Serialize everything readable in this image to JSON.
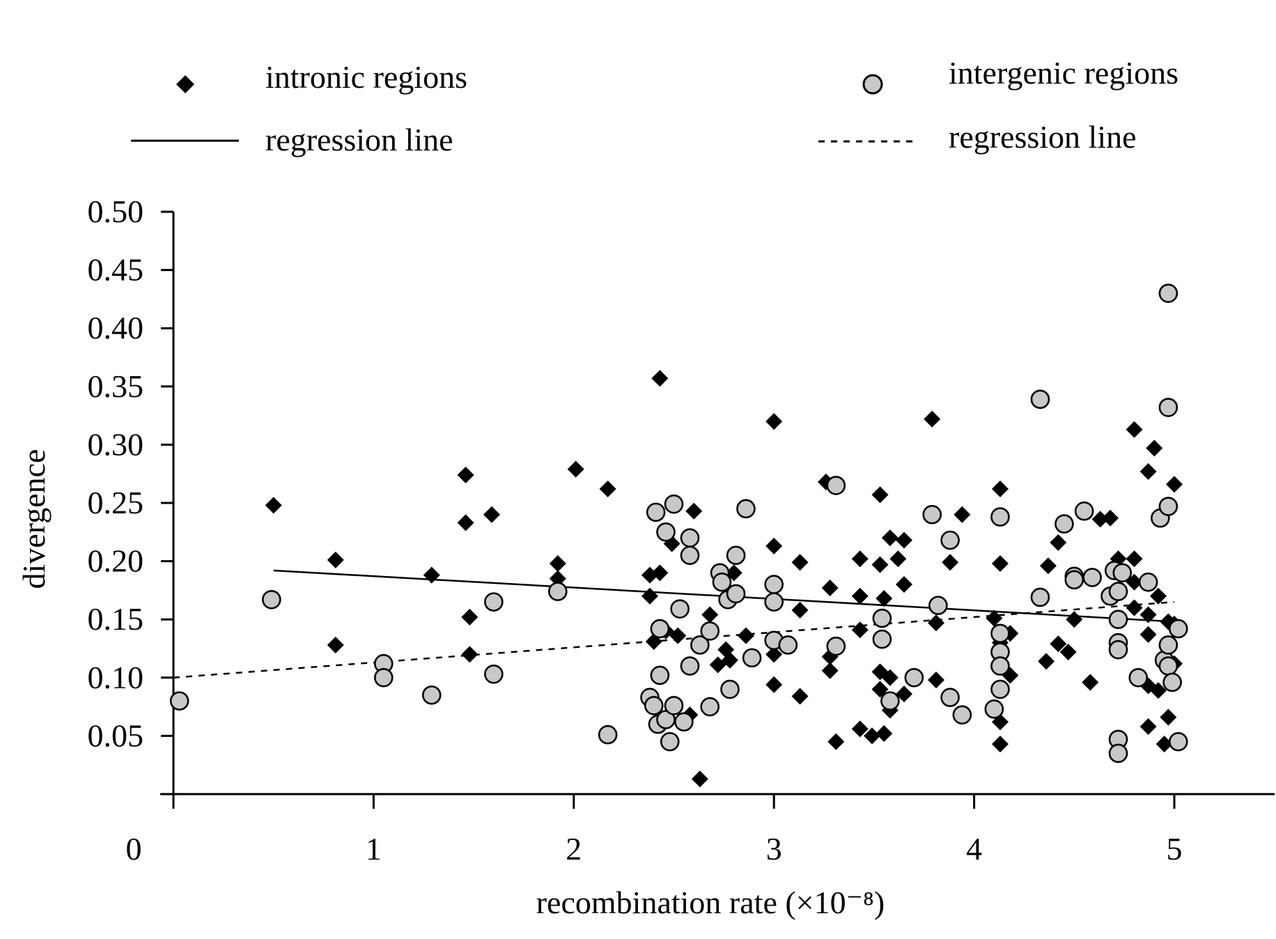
{
  "chart_data": {
    "type": "scatter",
    "xlabel": "recombination rate (×10⁻⁸)",
    "ylabel": "divergence",
    "xlim": [
      0,
      5.5
    ],
    "ylim": [
      0,
      0.5
    ],
    "x_ticks": [
      "0",
      "1",
      "2",
      "3",
      "4",
      "5"
    ],
    "x_tick_values": [
      0,
      1,
      2,
      3,
      4,
      5
    ],
    "y_ticks": [
      "0.05",
      "0.10",
      "0.15",
      "0.20",
      "0.25",
      "0.30",
      "0.35",
      "0.40",
      "0.45",
      "0.50"
    ],
    "y_tick_values": [
      0.05,
      0.1,
      0.15,
      0.2,
      0.25,
      0.3,
      0.35,
      0.4,
      0.45,
      0.5
    ],
    "legend": {
      "placement": "top",
      "entries": [
        {
          "label": "intronic regions",
          "marker": "diamond"
        },
        {
          "label": "intergenic regions",
          "marker": "circle"
        },
        {
          "label": "regression line",
          "line": "solid"
        },
        {
          "label": "regression line",
          "line": "dashed"
        }
      ]
    },
    "series": [
      {
        "name": "intronic regions",
        "marker": "diamond",
        "color": "#000000",
        "points": [
          [
            0.5,
            0.248
          ],
          [
            0.81,
            0.201
          ],
          [
            0.81,
            0.128
          ],
          [
            1.29,
            0.188
          ],
          [
            1.46,
            0.274
          ],
          [
            1.46,
            0.233
          ],
          [
            1.48,
            0.152
          ],
          [
            1.48,
            0.12
          ],
          [
            1.59,
            0.24
          ],
          [
            1.92,
            0.198
          ],
          [
            1.92,
            0.185
          ],
          [
            2.01,
            0.279
          ],
          [
            2.17,
            0.262
          ],
          [
            2.38,
            0.188
          ],
          [
            2.38,
            0.17
          ],
          [
            2.4,
            0.131
          ],
          [
            2.43,
            0.357
          ],
          [
            2.43,
            0.19
          ],
          [
            2.46,
            0.14
          ],
          [
            2.49,
            0.215
          ],
          [
            2.52,
            0.136
          ],
          [
            2.58,
            0.068
          ],
          [
            2.6,
            0.243
          ],
          [
            2.63,
            0.013
          ],
          [
            2.68,
            0.154
          ],
          [
            2.72,
            0.111
          ],
          [
            2.76,
            0.124
          ],
          [
            2.78,
            0.115
          ],
          [
            2.8,
            0.19
          ],
          [
            2.86,
            0.136
          ],
          [
            3.0,
            0.32
          ],
          [
            3.0,
            0.213
          ],
          [
            3.0,
            0.12
          ],
          [
            3.0,
            0.094
          ],
          [
            3.13,
            0.199
          ],
          [
            3.13,
            0.158
          ],
          [
            3.13,
            0.084
          ],
          [
            3.26,
            0.268
          ],
          [
            3.28,
            0.177
          ],
          [
            3.28,
            0.118
          ],
          [
            3.28,
            0.106
          ],
          [
            3.31,
            0.045
          ],
          [
            3.43,
            0.202
          ],
          [
            3.43,
            0.17
          ],
          [
            3.43,
            0.141
          ],
          [
            3.43,
            0.056
          ],
          [
            3.49,
            0.05
          ],
          [
            3.53,
            0.257
          ],
          [
            3.53,
            0.197
          ],
          [
            3.53,
            0.105
          ],
          [
            3.53,
            0.09
          ],
          [
            3.55,
            0.168
          ],
          [
            3.55,
            0.052
          ],
          [
            3.58,
            0.22
          ],
          [
            3.58,
            0.1
          ],
          [
            3.58,
            0.072
          ],
          [
            3.62,
            0.202
          ],
          [
            3.65,
            0.218
          ],
          [
            3.65,
            0.18
          ],
          [
            3.65,
            0.086
          ],
          [
            3.79,
            0.322
          ],
          [
            3.81,
            0.147
          ],
          [
            3.81,
            0.098
          ],
          [
            3.88,
            0.199
          ],
          [
            3.94,
            0.24
          ],
          [
            4.1,
            0.151
          ],
          [
            4.13,
            0.262
          ],
          [
            4.13,
            0.198
          ],
          [
            4.13,
            0.13
          ],
          [
            4.13,
            0.062
          ],
          [
            4.13,
            0.043
          ],
          [
            4.18,
            0.138
          ],
          [
            4.18,
            0.102
          ],
          [
            4.36,
            0.114
          ],
          [
            4.37,
            0.196
          ],
          [
            4.42,
            0.216
          ],
          [
            4.42,
            0.129
          ],
          [
            4.47,
            0.122
          ],
          [
            4.5,
            0.15
          ],
          [
            4.58,
            0.096
          ],
          [
            4.63,
            0.236
          ],
          [
            4.68,
            0.237
          ],
          [
            4.72,
            0.202
          ],
          [
            4.8,
            0.313
          ],
          [
            4.8,
            0.202
          ],
          [
            4.8,
            0.182
          ],
          [
            4.8,
            0.16
          ],
          [
            4.87,
            0.277
          ],
          [
            4.87,
            0.154
          ],
          [
            4.87,
            0.137
          ],
          [
            4.87,
            0.093
          ],
          [
            4.87,
            0.058
          ],
          [
            4.9,
            0.297
          ],
          [
            4.92,
            0.17
          ],
          [
            4.92,
            0.089
          ],
          [
            4.95,
            0.043
          ],
          [
            4.97,
            0.148
          ],
          [
            4.97,
            0.066
          ],
          [
            5.0,
            0.266
          ],
          [
            5.0,
            0.146
          ],
          [
            5.0,
            0.112
          ]
        ]
      },
      {
        "name": "intergenic regions",
        "marker": "circle",
        "color": "#c8c8c8",
        "points": [
          [
            0.03,
            0.08
          ],
          [
            0.49,
            0.167
          ],
          [
            1.05,
            0.112
          ],
          [
            1.05,
            0.1
          ],
          [
            1.29,
            0.085
          ],
          [
            1.6,
            0.165
          ],
          [
            1.6,
            0.103
          ],
          [
            1.92,
            0.174
          ],
          [
            2.17,
            0.051
          ],
          [
            2.38,
            0.083
          ],
          [
            2.4,
            0.076
          ],
          [
            2.41,
            0.242
          ],
          [
            2.42,
            0.06
          ],
          [
            2.43,
            0.142
          ],
          [
            2.43,
            0.102
          ],
          [
            2.46,
            0.225
          ],
          [
            2.46,
            0.064
          ],
          [
            2.48,
            0.045
          ],
          [
            2.5,
            0.249
          ],
          [
            2.5,
            0.076
          ],
          [
            2.53,
            0.159
          ],
          [
            2.55,
            0.062
          ],
          [
            2.58,
            0.22
          ],
          [
            2.58,
            0.205
          ],
          [
            2.58,
            0.11
          ],
          [
            2.63,
            0.128
          ],
          [
            2.68,
            0.14
          ],
          [
            2.68,
            0.075
          ],
          [
            2.73,
            0.19
          ],
          [
            2.74,
            0.182
          ],
          [
            2.77,
            0.167
          ],
          [
            2.78,
            0.09
          ],
          [
            2.81,
            0.205
          ],
          [
            2.81,
            0.172
          ],
          [
            2.86,
            0.245
          ],
          [
            2.89,
            0.117
          ],
          [
            3.0,
            0.18
          ],
          [
            3.0,
            0.165
          ],
          [
            3.0,
            0.132
          ],
          [
            3.07,
            0.128
          ],
          [
            3.31,
            0.265
          ],
          [
            3.31,
            0.127
          ],
          [
            3.54,
            0.151
          ],
          [
            3.54,
            0.133
          ],
          [
            3.58,
            0.08
          ],
          [
            3.7,
            0.1
          ],
          [
            3.79,
            0.24
          ],
          [
            3.82,
            0.162
          ],
          [
            3.88,
            0.218
          ],
          [
            3.88,
            0.083
          ],
          [
            3.94,
            0.068
          ],
          [
            4.1,
            0.073
          ],
          [
            4.13,
            0.238
          ],
          [
            4.13,
            0.138
          ],
          [
            4.13,
            0.122
          ],
          [
            4.13,
            0.11
          ],
          [
            4.13,
            0.09
          ],
          [
            4.33,
            0.339
          ],
          [
            4.33,
            0.169
          ],
          [
            4.45,
            0.232
          ],
          [
            4.5,
            0.187
          ],
          [
            4.5,
            0.184
          ],
          [
            4.55,
            0.243
          ],
          [
            4.59,
            0.186
          ],
          [
            4.68,
            0.17
          ],
          [
            4.7,
            0.192
          ],
          [
            4.72,
            0.174
          ],
          [
            4.72,
            0.15
          ],
          [
            4.72,
            0.13
          ],
          [
            4.72,
            0.124
          ],
          [
            4.72,
            0.047
          ],
          [
            4.72,
            0.035
          ],
          [
            4.74,
            0.19
          ],
          [
            4.82,
            0.1
          ],
          [
            4.87,
            0.182
          ],
          [
            4.93,
            0.237
          ],
          [
            4.95,
            0.115
          ],
          [
            4.97,
            0.43
          ],
          [
            4.97,
            0.332
          ],
          [
            4.97,
            0.247
          ],
          [
            4.97,
            0.128
          ],
          [
            4.97,
            0.11
          ],
          [
            4.99,
            0.096
          ],
          [
            5.02,
            0.142
          ],
          [
            5.02,
            0.045
          ]
        ]
      }
    ],
    "regression_lines": [
      {
        "series": "intronic regions",
        "style": "solid",
        "x": [
          0.5,
          5.0
        ],
        "y": [
          0.192,
          0.148
        ]
      },
      {
        "series": "intergenic regions",
        "style": "dashed",
        "x": [
          0.0,
          5.0
        ],
        "y": [
          0.1,
          0.165
        ]
      }
    ]
  }
}
